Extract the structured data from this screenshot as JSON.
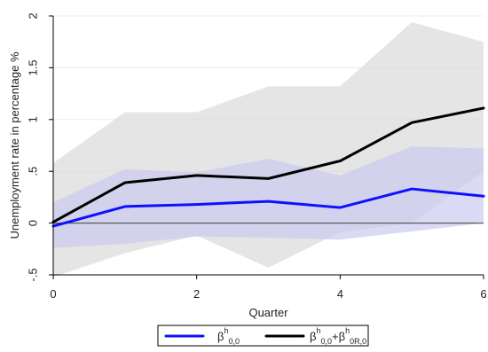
{
  "chart_data": {
    "type": "line",
    "title": "",
    "xlabel": "Quarter",
    "ylabel": "Unemployment rate in percentage %",
    "xlim": [
      0,
      6
    ],
    "ylim": [
      -0.5,
      2
    ],
    "x_ticks": [
      0,
      2,
      4,
      6
    ],
    "y_ticks": [
      -0.5,
      0,
      0.5,
      1,
      1.5,
      2
    ],
    "x_tick_labels": [
      "0",
      "2",
      "4",
      "6"
    ],
    "y_tick_labels": [
      "-.5",
      "0",
      ".5",
      "1",
      "1.5",
      "2"
    ],
    "x": [
      0,
      1,
      2,
      3,
      4,
      5,
      6
    ],
    "series": [
      {
        "name": "β^h_0,0",
        "color": "#1010ff",
        "values": [
          -0.03,
          0.16,
          0.18,
          0.21,
          0.15,
          0.33,
          0.26
        ],
        "ci_lower": [
          -0.24,
          -0.2,
          -0.13,
          -0.14,
          -0.16,
          -0.08,
          0.0
        ],
        "ci_upper": [
          0.2,
          0.52,
          0.49,
          0.62,
          0.46,
          0.74,
          0.72
        ],
        "band_color": "#c8c8ef"
      },
      {
        "name": "β^h_0,0+β^h_0R,0",
        "color": "#000000",
        "values": [
          0.01,
          0.39,
          0.46,
          0.43,
          0.6,
          0.97,
          1.11
        ],
        "ci_lower": [
          -0.52,
          -0.29,
          -0.12,
          -0.43,
          -0.09,
          0.0,
          0.5
        ],
        "ci_upper": [
          0.58,
          1.07,
          1.07,
          1.32,
          1.32,
          1.94,
          1.75
        ],
        "band_color": "#d9d9d9"
      }
    ],
    "reference_line": {
      "y": 0,
      "color": "#5a5a5a"
    },
    "grid": true,
    "legend_position": "bottom",
    "legend": [
      {
        "base": "β",
        "sup": "h",
        "sub": "0,0"
      },
      {
        "base": "β",
        "sup": "h",
        "sub": "0,0",
        "plus": "+β",
        "sup2": "h",
        "sub2": "0R,0"
      }
    ]
  }
}
